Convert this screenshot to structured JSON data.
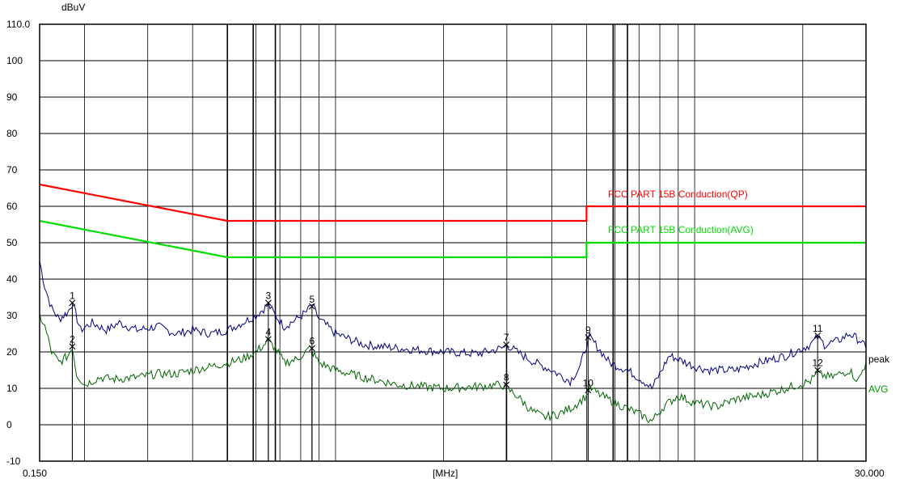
{
  "chart_data": {
    "type": "line",
    "title": "",
    "ylabel": "dBuV",
    "xlabel": "[MHz]",
    "x_scale": "log",
    "xlim": [
      0.15,
      30.0
    ],
    "ylim": [
      -10,
      110
    ],
    "x_tick_labels": [
      "0.150",
      "[MHz]",
      "30.000"
    ],
    "y_ticks": [
      -10,
      0,
      10,
      20,
      30,
      40,
      50,
      60,
      70,
      80,
      90,
      100,
      110
    ],
    "y_tick_labels": [
      "-10",
      "0",
      "10",
      "20",
      "30",
      "40",
      "50",
      "60",
      "70",
      "80",
      "90",
      "100",
      "110.0"
    ],
    "grid": true,
    "limits": [
      {
        "name": "FCC PART 15B  Conduction(QP)",
        "color": "#ff0000",
        "points": [
          [
            0.15,
            66.0
          ],
          [
            0.5,
            56.0
          ],
          [
            5.0,
            56.0
          ],
          [
            5.0,
            60.0
          ],
          [
            30.0,
            60.0
          ]
        ]
      },
      {
        "name": "FCC PART 15B Conduction(AVG)",
        "color": "#00dd00",
        "points": [
          [
            0.15,
            56.0
          ],
          [
            0.5,
            46.0
          ],
          [
            5.0,
            46.0
          ],
          [
            5.0,
            50.0
          ],
          [
            30.0,
            50.0
          ]
        ]
      }
    ],
    "series": [
      {
        "name": "peak",
        "color": "#000080",
        "points": [
          [
            0.15,
            45
          ],
          [
            0.155,
            38
          ],
          [
            0.162,
            32
          ],
          [
            0.17,
            29
          ],
          [
            0.18,
            31
          ],
          [
            0.185,
            33.5
          ],
          [
            0.195,
            26
          ],
          [
            0.21,
            28
          ],
          [
            0.23,
            26
          ],
          [
            0.25,
            28
          ],
          [
            0.28,
            26
          ],
          [
            0.32,
            27
          ],
          [
            0.36,
            25
          ],
          [
            0.4,
            26
          ],
          [
            0.45,
            25
          ],
          [
            0.5,
            26
          ],
          [
            0.55,
            28
          ],
          [
            0.6,
            30
          ],
          [
            0.65,
            33
          ],
          [
            0.68,
            30
          ],
          [
            0.72,
            27
          ],
          [
            0.78,
            29
          ],
          [
            0.83,
            31
          ],
          [
            0.86,
            33
          ],
          [
            0.9,
            29
          ],
          [
            0.95,
            27
          ],
          [
            1.0,
            25
          ],
          [
            1.2,
            22
          ],
          [
            1.5,
            21
          ],
          [
            2.0,
            20
          ],
          [
            2.5,
            19.5
          ],
          [
            2.9,
            21
          ],
          [
            3.0,
            22
          ],
          [
            3.2,
            20
          ],
          [
            3.6,
            17
          ],
          [
            4.0,
            15
          ],
          [
            4.5,
            12
          ],
          [
            4.8,
            16
          ],
          [
            5.0,
            22
          ],
          [
            5.1,
            24
          ],
          [
            5.3,
            22
          ],
          [
            5.8,
            17
          ],
          [
            6.5,
            15
          ],
          [
            7.2,
            12
          ],
          [
            7.6,
            10
          ],
          [
            8.0,
            14
          ],
          [
            8.5,
            19
          ],
          [
            9.0,
            18
          ],
          [
            10.0,
            16
          ],
          [
            11.0,
            15
          ],
          [
            13.0,
            15
          ],
          [
            15.0,
            17
          ],
          [
            18.0,
            19
          ],
          [
            21.0,
            22
          ],
          [
            22.0,
            24
          ],
          [
            23.0,
            22
          ],
          [
            25.0,
            23
          ],
          [
            27.0,
            25
          ],
          [
            29.0,
            23
          ],
          [
            30.0,
            21
          ]
        ]
      },
      {
        "name": "AVG",
        "color": "#006400",
        "points": [
          [
            0.15,
            30
          ],
          [
            0.155,
            27
          ],
          [
            0.162,
            20
          ],
          [
            0.17,
            17
          ],
          [
            0.18,
            19
          ],
          [
            0.185,
            21.5
          ],
          [
            0.19,
            14
          ],
          [
            0.2,
            11
          ],
          [
            0.22,
            13
          ],
          [
            0.24,
            12.5
          ],
          [
            0.28,
            13
          ],
          [
            0.32,
            14
          ],
          [
            0.36,
            14
          ],
          [
            0.4,
            15
          ],
          [
            0.45,
            16
          ],
          [
            0.5,
            17
          ],
          [
            0.55,
            18
          ],
          [
            0.6,
            20
          ],
          [
            0.65,
            23
          ],
          [
            0.68,
            21
          ],
          [
            0.72,
            17
          ],
          [
            0.78,
            18
          ],
          [
            0.85,
            21
          ],
          [
            0.9,
            17
          ],
          [
            1.0,
            15
          ],
          [
            1.2,
            13
          ],
          [
            1.5,
            11
          ],
          [
            2.0,
            10
          ],
          [
            2.5,
            10.5
          ],
          [
            2.9,
            11
          ],
          [
            3.2,
            8
          ],
          [
            3.5,
            4
          ],
          [
            3.8,
            2
          ],
          [
            4.2,
            3
          ],
          [
            4.6,
            5
          ],
          [
            5.0,
            8
          ],
          [
            5.1,
            10
          ],
          [
            5.5,
            8
          ],
          [
            6.0,
            6
          ],
          [
            7.0,
            3
          ],
          [
            7.6,
            1
          ],
          [
            8.2,
            5
          ],
          [
            9.0,
            8
          ],
          [
            10.0,
            6
          ],
          [
            11.5,
            5
          ],
          [
            13.0,
            7
          ],
          [
            15.0,
            8
          ],
          [
            18.0,
            10
          ],
          [
            21.0,
            12
          ],
          [
            22.0,
            14
          ],
          [
            24.0,
            13
          ],
          [
            27.0,
            15
          ],
          [
            28.5,
            12
          ],
          [
            30.0,
            17
          ]
        ]
      }
    ],
    "markers": [
      {
        "label": "1",
        "x": 0.185,
        "y": 33.5
      },
      {
        "label": "2",
        "x": 0.185,
        "y": 21.5
      },
      {
        "label": "3",
        "x": 0.65,
        "y": 33.5
      },
      {
        "label": "4",
        "x": 0.65,
        "y": 23.5
      },
      {
        "label": "5",
        "x": 0.86,
        "y": 32.5
      },
      {
        "label": "6",
        "x": 0.86,
        "y": 21.0
      },
      {
        "label": "7",
        "x": 2.99,
        "y": 22.0
      },
      {
        "label": "8",
        "x": 2.99,
        "y": 11.0
      },
      {
        "label": "9",
        "x": 5.05,
        "y": 24.0
      },
      {
        "label": "10",
        "x": 5.05,
        "y": 9.5
      },
      {
        "label": "11",
        "x": 22.0,
        "y": 24.5
      },
      {
        "label": "12",
        "x": 22.0,
        "y": 15.0
      }
    ],
    "marker_lines_x": [
      0.5,
      0.59,
      0.68,
      5.93,
      6.5
    ],
    "legend": [
      "peak",
      "AVG"
    ]
  }
}
